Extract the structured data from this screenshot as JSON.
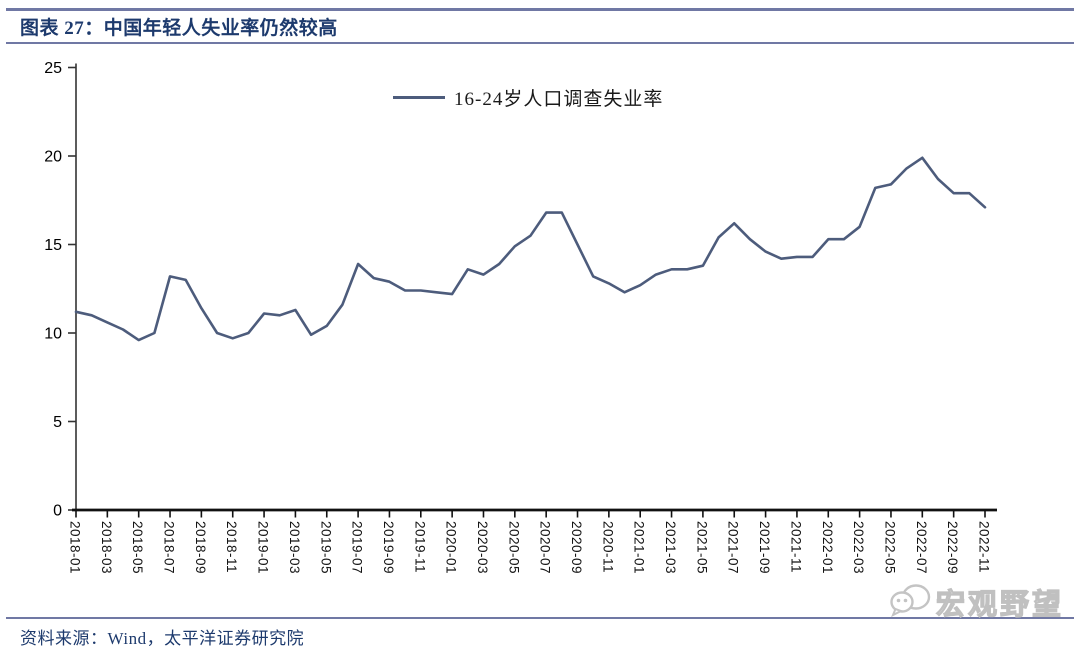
{
  "header": {
    "title": "图表 27：中国年轻人失业率仍然较高"
  },
  "chart_data": {
    "type": "line",
    "title": "图表 27：中国年轻人失业率仍然较高",
    "xlabel": "",
    "ylabel": "",
    "ylim": [
      0,
      25
    ],
    "ytick_step": 5,
    "xtick_every": 2,
    "grid": false,
    "legend_position": "top-center",
    "line_color": "#4d5c7c",
    "categories": [
      "2018-01",
      "2018-02",
      "2018-03",
      "2018-04",
      "2018-05",
      "2018-06",
      "2018-07",
      "2018-08",
      "2018-09",
      "2018-10",
      "2018-11",
      "2018-12",
      "2019-01",
      "2019-02",
      "2019-03",
      "2019-04",
      "2019-05",
      "2019-06",
      "2019-07",
      "2019-08",
      "2019-09",
      "2019-10",
      "2019-11",
      "2019-12",
      "2020-01",
      "2020-02",
      "2020-03",
      "2020-04",
      "2020-05",
      "2020-06",
      "2020-07",
      "2020-08",
      "2020-09",
      "2020-10",
      "2020-11",
      "2020-12",
      "2021-01",
      "2021-02",
      "2021-03",
      "2021-04",
      "2021-05",
      "2021-06",
      "2021-07",
      "2021-08",
      "2021-09",
      "2021-10",
      "2021-11",
      "2021-12",
      "2022-01",
      "2022-02",
      "2022-03",
      "2022-04",
      "2022-05",
      "2022-06",
      "2022-07",
      "2022-08",
      "2022-09",
      "2022-10",
      "2022-11"
    ],
    "series": [
      {
        "name": "16-24岁人口调查失业率",
        "color": "#4d5c7c",
        "values": [
          11.2,
          11.0,
          10.6,
          10.2,
          9.6,
          10.0,
          13.2,
          13.0,
          11.4,
          10.0,
          9.7,
          10.0,
          11.1,
          11.0,
          11.3,
          9.9,
          10.4,
          11.6,
          13.9,
          13.1,
          12.9,
          12.4,
          12.4,
          12.3,
          12.2,
          13.6,
          13.3,
          13.9,
          14.9,
          15.5,
          16.8,
          16.8,
          15.0,
          13.2,
          12.8,
          12.3,
          12.7,
          13.3,
          13.6,
          13.6,
          13.8,
          15.4,
          16.2,
          15.3,
          14.6,
          14.2,
          14.3,
          14.3,
          15.3,
          15.3,
          16.0,
          18.2,
          18.4,
          19.3,
          19.9,
          18.7,
          17.9,
          17.9,
          17.1
        ]
      }
    ]
  },
  "footer": {
    "source": "资料来源：Wind，太平洋证券研究院"
  },
  "watermark": {
    "text": "宏观野望",
    "icon": "wechat-chat-bubbles-icon"
  },
  "colors": {
    "rule": "#7078a4",
    "title_text": "#1d3a6d",
    "series_line": "#4d5c7c",
    "axis": "#111111",
    "watermark": "#c0c0c0"
  }
}
